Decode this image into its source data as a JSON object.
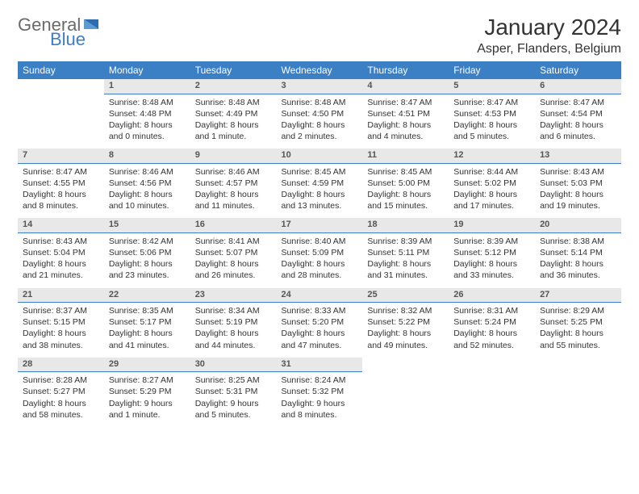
{
  "logo": {
    "text1": "General",
    "text2": "Blue"
  },
  "title": "January 2024",
  "location": "Asper, Flanders, Belgium",
  "header_color": "#3b7fc4",
  "daynum_bg": "#e8e8e8",
  "text_color": "#333333",
  "days": [
    "Sunday",
    "Monday",
    "Tuesday",
    "Wednesday",
    "Thursday",
    "Friday",
    "Saturday"
  ],
  "weeks": [
    [
      null,
      {
        "n": "1",
        "sr": "8:48 AM",
        "ss": "4:48 PM",
        "dl": "8 hours and 0 minutes."
      },
      {
        "n": "2",
        "sr": "8:48 AM",
        "ss": "4:49 PM",
        "dl": "8 hours and 1 minute."
      },
      {
        "n": "3",
        "sr": "8:48 AM",
        "ss": "4:50 PM",
        "dl": "8 hours and 2 minutes."
      },
      {
        "n": "4",
        "sr": "8:47 AM",
        "ss": "4:51 PM",
        "dl": "8 hours and 4 minutes."
      },
      {
        "n": "5",
        "sr": "8:47 AM",
        "ss": "4:53 PM",
        "dl": "8 hours and 5 minutes."
      },
      {
        "n": "6",
        "sr": "8:47 AM",
        "ss": "4:54 PM",
        "dl": "8 hours and 6 minutes."
      }
    ],
    [
      {
        "n": "7",
        "sr": "8:47 AM",
        "ss": "4:55 PM",
        "dl": "8 hours and 8 minutes."
      },
      {
        "n": "8",
        "sr": "8:46 AM",
        "ss": "4:56 PM",
        "dl": "8 hours and 10 minutes."
      },
      {
        "n": "9",
        "sr": "8:46 AM",
        "ss": "4:57 PM",
        "dl": "8 hours and 11 minutes."
      },
      {
        "n": "10",
        "sr": "8:45 AM",
        "ss": "4:59 PM",
        "dl": "8 hours and 13 minutes."
      },
      {
        "n": "11",
        "sr": "8:45 AM",
        "ss": "5:00 PM",
        "dl": "8 hours and 15 minutes."
      },
      {
        "n": "12",
        "sr": "8:44 AM",
        "ss": "5:02 PM",
        "dl": "8 hours and 17 minutes."
      },
      {
        "n": "13",
        "sr": "8:43 AM",
        "ss": "5:03 PM",
        "dl": "8 hours and 19 minutes."
      }
    ],
    [
      {
        "n": "14",
        "sr": "8:43 AM",
        "ss": "5:04 PM",
        "dl": "8 hours and 21 minutes."
      },
      {
        "n": "15",
        "sr": "8:42 AM",
        "ss": "5:06 PM",
        "dl": "8 hours and 23 minutes."
      },
      {
        "n": "16",
        "sr": "8:41 AM",
        "ss": "5:07 PM",
        "dl": "8 hours and 26 minutes."
      },
      {
        "n": "17",
        "sr": "8:40 AM",
        "ss": "5:09 PM",
        "dl": "8 hours and 28 minutes."
      },
      {
        "n": "18",
        "sr": "8:39 AM",
        "ss": "5:11 PM",
        "dl": "8 hours and 31 minutes."
      },
      {
        "n": "19",
        "sr": "8:39 AM",
        "ss": "5:12 PM",
        "dl": "8 hours and 33 minutes."
      },
      {
        "n": "20",
        "sr": "8:38 AM",
        "ss": "5:14 PM",
        "dl": "8 hours and 36 minutes."
      }
    ],
    [
      {
        "n": "21",
        "sr": "8:37 AM",
        "ss": "5:15 PM",
        "dl": "8 hours and 38 minutes."
      },
      {
        "n": "22",
        "sr": "8:35 AM",
        "ss": "5:17 PM",
        "dl": "8 hours and 41 minutes."
      },
      {
        "n": "23",
        "sr": "8:34 AM",
        "ss": "5:19 PM",
        "dl": "8 hours and 44 minutes."
      },
      {
        "n": "24",
        "sr": "8:33 AM",
        "ss": "5:20 PM",
        "dl": "8 hours and 47 minutes."
      },
      {
        "n": "25",
        "sr": "8:32 AM",
        "ss": "5:22 PM",
        "dl": "8 hours and 49 minutes."
      },
      {
        "n": "26",
        "sr": "8:31 AM",
        "ss": "5:24 PM",
        "dl": "8 hours and 52 minutes."
      },
      {
        "n": "27",
        "sr": "8:29 AM",
        "ss": "5:25 PM",
        "dl": "8 hours and 55 minutes."
      }
    ],
    [
      {
        "n": "28",
        "sr": "8:28 AM",
        "ss": "5:27 PM",
        "dl": "8 hours and 58 minutes."
      },
      {
        "n": "29",
        "sr": "8:27 AM",
        "ss": "5:29 PM",
        "dl": "9 hours and 1 minute."
      },
      {
        "n": "30",
        "sr": "8:25 AM",
        "ss": "5:31 PM",
        "dl": "9 hours and 5 minutes."
      },
      {
        "n": "31",
        "sr": "8:24 AM",
        "ss": "5:32 PM",
        "dl": "9 hours and 8 minutes."
      },
      null,
      null,
      null
    ]
  ],
  "labels": {
    "sunrise": "Sunrise:",
    "sunset": "Sunset:",
    "daylight": "Daylight:"
  }
}
